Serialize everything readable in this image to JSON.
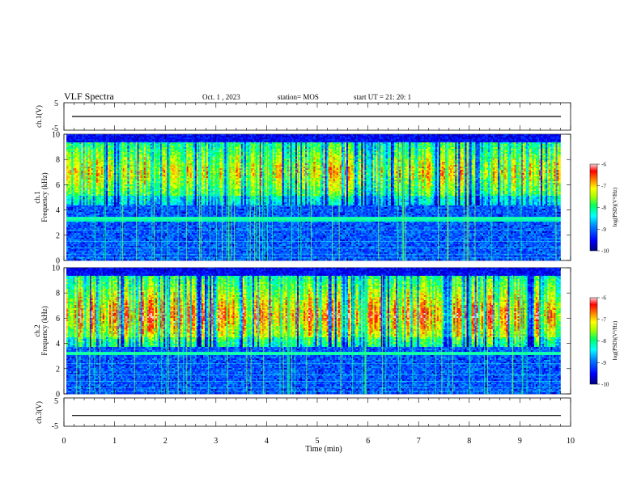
{
  "header": {
    "title": "VLF Spectra",
    "date": "Oct. 1 , 2023",
    "station": "station= MOS",
    "start": "start  UT =   21: 20: 1"
  },
  "chart_data": [
    {
      "type": "line",
      "panel": "ch1-waveform",
      "ylabel": "ch.1(V)",
      "ylim": [
        -5,
        5
      ],
      "yticks": [
        "5",
        "-5"
      ],
      "xlim": [
        0,
        10
      ],
      "trace_level": 0
    },
    {
      "type": "heatmap",
      "panel": "ch1-spectrogram",
      "ylabel_channel": "ch.1",
      "ylabel": "Frequency (kHz)",
      "ylim": [
        0,
        10
      ],
      "yticks": [
        "0",
        "2",
        "4",
        "6",
        "8",
        "10"
      ],
      "xlim": [
        0,
        10
      ],
      "upper_band_peak_khz": [
        7.5,
        8.5
      ],
      "line_khz": 3.3,
      "colorbar": {
        "label": "log(PSD)(V²/Hz)",
        "ticks": [
          "-6",
          "-7",
          "-8",
          "-9",
          "-10"
        ],
        "range": [
          -10,
          -6
        ]
      }
    },
    {
      "type": "heatmap",
      "panel": "ch2-spectrogram",
      "ylabel_channel": "ch.2",
      "ylabel": "Frequency (kHz)",
      "ylim": [
        0,
        10
      ],
      "yticks": [
        "0",
        "2",
        "4",
        "6",
        "8",
        "10"
      ],
      "xlim": [
        0,
        10
      ],
      "upper_band_peak_khz": [
        5.5,
        7.5
      ],
      "line_khz": 3.2,
      "colorbar": {
        "label": "log(PSD)(V²/Hz)",
        "ticks": [
          "-6",
          "-7",
          "-8",
          "-9",
          "-10"
        ],
        "range": [
          -10,
          -6
        ]
      }
    },
    {
      "type": "line",
      "panel": "ch3-waveform",
      "ylabel": "ch.3(V)",
      "ylim": [
        -5,
        5
      ],
      "yticks": [
        "5",
        "-5"
      ],
      "xlim": [
        0,
        10
      ],
      "trace_level": -1.2
    }
  ],
  "xaxis": {
    "label": "Time (min)",
    "ticks": [
      "0",
      "1",
      "2",
      "3",
      "4",
      "5",
      "6",
      "7",
      "8",
      "9",
      "10"
    ]
  },
  "colors": {
    "palette": [
      "#000080",
      "#0000ff",
      "#0080ff",
      "#00ffff",
      "#00ff80",
      "#80ff00",
      "#ffff00",
      "#ff8000",
      "#ff0000",
      "#ffc0c0"
    ]
  }
}
